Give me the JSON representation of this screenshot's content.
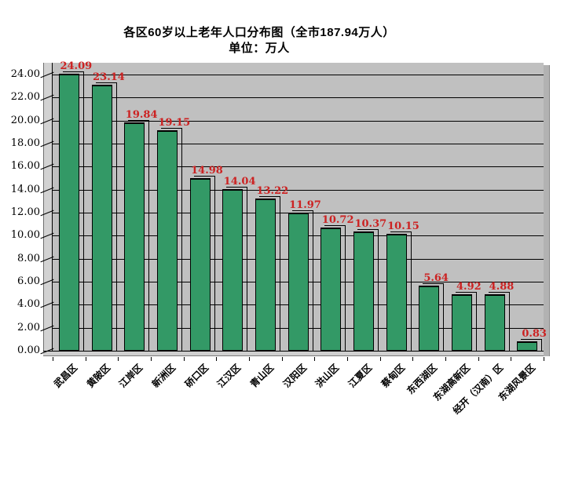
{
  "chart_data": {
    "type": "bar",
    "title": "各区60岁以上老年人口分布图（全市187.94万人）",
    "subtitle": "单位：万人",
    "categories": [
      "武昌区",
      "黄陂区",
      "江岸区",
      "新洲区",
      "硚口区",
      "江汉区",
      "青山区",
      "汉阳区",
      "洪山区",
      "江夏区",
      "蔡甸区",
      "东西湖区",
      "东湖高新区",
      "经开（汉南）区",
      "东湖风景区"
    ],
    "values": [
      24.09,
      23.14,
      19.84,
      19.15,
      14.98,
      14.04,
      13.22,
      11.97,
      10.72,
      10.37,
      10.15,
      5.64,
      4.92,
      4.88,
      0.83
    ],
    "value_labels": [
      "24.09",
      "23.14",
      "19.84",
      "19.15",
      "14.98",
      "14.04",
      "13.22",
      "11.97",
      "10.72",
      "10.37",
      "10.15",
      "5.64",
      "4.92",
      "4.88",
      "0.83"
    ],
    "ylim": [
      0,
      24
    ],
    "ytick_step": 2,
    "ytick_labels": [
      "24.00",
      "22.00",
      "20.00",
      "18.00",
      "16.00",
      "14.00",
      "12.00",
      "10.00",
      "8.00",
      "6.00",
      "4.00",
      "2.00",
      "0.00"
    ],
    "grid": true,
    "legend_position": "none",
    "colors": {
      "bar_fill": "#339966",
      "bar_border": "#000000",
      "data_label": "#cc2222",
      "plot_wall": "#c0c0c0",
      "wall_side_strip": "#d2d2d2",
      "gridline": "#000000",
      "title_text": "#000000",
      "axis_text": "#000000",
      "background": "#ffffff"
    }
  }
}
